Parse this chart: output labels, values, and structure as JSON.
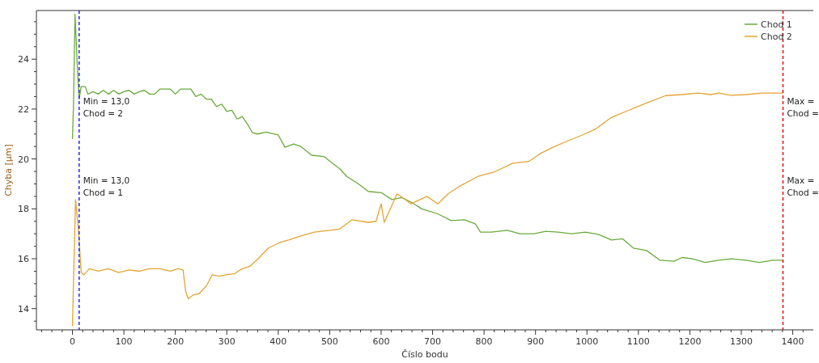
{
  "chart_data": {
    "type": "line",
    "xlabel": "Číslo bodu",
    "ylabel": "Chyba [µm]",
    "xlim": [
      -70,
      1440
    ],
    "ylim": [
      13.15,
      25.95
    ],
    "xticks": [
      {
        "value": -60,
        "label": null
      },
      {
        "value": -40,
        "label": null
      },
      {
        "value": -20,
        "label": null
      },
      0,
      {
        "value": 20,
        "label": null
      },
      {
        "value": 40,
        "label": null
      },
      {
        "value": 60,
        "label": null
      },
      {
        "value": 80,
        "label": null
      },
      100,
      {
        "value": 120,
        "label": null
      },
      {
        "value": 140,
        "label": null
      },
      {
        "value": 160,
        "label": null
      },
      {
        "value": 180,
        "label": null
      },
      200,
      {
        "value": 220,
        "label": null
      },
      {
        "value": 240,
        "label": null
      },
      {
        "value": 260,
        "label": null
      },
      {
        "value": 280,
        "label": null
      },
      300,
      {
        "value": 320,
        "label": null
      },
      {
        "value": 340,
        "label": null
      },
      {
        "value": 360,
        "label": null
      },
      {
        "value": 380,
        "label": null
      },
      400,
      {
        "value": 420,
        "label": null
      },
      {
        "value": 440,
        "label": null
      },
      {
        "value": 460,
        "label": null
      },
      {
        "value": 480,
        "label": null
      },
      500,
      {
        "value": 520,
        "label": null
      },
      {
        "value": 540,
        "label": null
      },
      {
        "value": 560,
        "label": null
      },
      {
        "value": 580,
        "label": null
      },
      600,
      {
        "value": 620,
        "label": null
      },
      {
        "value": 640,
        "label": null
      },
      {
        "value": 660,
        "label": null
      },
      {
        "value": 680,
        "label": null
      },
      700,
      {
        "value": 720,
        "label": null
      },
      {
        "value": 740,
        "label": null
      },
      {
        "value": 760,
        "label": null
      },
      {
        "value": 780,
        "label": null
      },
      800,
      {
        "value": 820,
        "label": null
      },
      {
        "value": 840,
        "label": null
      },
      {
        "value": 860,
        "label": null
      },
      {
        "value": 880,
        "label": null
      },
      900,
      {
        "value": 920,
        "label": null
      },
      {
        "value": 940,
        "label": null
      },
      {
        "value": 960,
        "label": null
      },
      {
        "value": 980,
        "label": null
      },
      1000,
      {
        "value": 1020,
        "label": null
      },
      {
        "value": 1040,
        "label": null
      },
      {
        "value": 1060,
        "label": null
      },
      {
        "value": 1080,
        "label": null
      },
      1100,
      {
        "value": 1120,
        "label": null
      },
      {
        "value": 1140,
        "label": null
      },
      {
        "value": 1160,
        "label": null
      },
      {
        "value": 1180,
        "label": null
      },
      1200,
      {
        "value": 1220,
        "label": null
      },
      {
        "value": 1240,
        "label": null
      },
      {
        "value": 1260,
        "label": null
      },
      {
        "value": 1280,
        "label": null
      },
      1300,
      {
        "value": 1320,
        "label": null
      },
      {
        "value": 1340,
        "label": null
      },
      {
        "value": 1360,
        "label": null
      },
      {
        "value": 1380,
        "label": null
      },
      1400,
      {
        "value": 1420,
        "label": null
      }
    ],
    "yticks": [
      {
        "value": 13.5,
        "label": null
      },
      14,
      {
        "value": 14.5,
        "label": null
      },
      {
        "value": 15,
        "label": null
      },
      {
        "value": 15.5,
        "label": null
      },
      16,
      {
        "value": 16.5,
        "label": null
      },
      {
        "value": 17,
        "label": null
      },
      {
        "value": 17.5,
        "label": null
      },
      18,
      {
        "value": 18.5,
        "label": null
      },
      {
        "value": 19,
        "label": null
      },
      {
        "value": 19.5,
        "label": null
      },
      20,
      {
        "value": 20.5,
        "label": null
      },
      {
        "value": 21,
        "label": null
      },
      {
        "value": 21.5,
        "label": null
      },
      22,
      {
        "value": 22.5,
        "label": null
      },
      {
        "value": 23,
        "label": null
      },
      {
        "value": 23.5,
        "label": null
      },
      24,
      {
        "value": 24.5,
        "label": null
      },
      {
        "value": 25,
        "label": null
      },
      {
        "value": 25.5,
        "label": null
      }
    ],
    "grid": false,
    "legend": "top right",
    "marker": "none",
    "line_style": "solid",
    "series": [
      {
        "name": "Chod 1",
        "color": "#6aab3c",
        "x": [
          0,
          2,
          5,
          10,
          13,
          17,
          25,
          30,
          40,
          50,
          60,
          70,
          80,
          90,
          100,
          110,
          120,
          130,
          140,
          150,
          160,
          170,
          190,
          200,
          210,
          230,
          240,
          250,
          260,
          270,
          280,
          290,
          300,
          310,
          320,
          330,
          340,
          350,
          360,
          376,
          400,
          413,
          430,
          444,
          465,
          489,
          501,
          520,
          533,
          556,
          575,
          600,
          621,
          640,
          658,
          679,
          710,
          736,
          762,
          783,
          793,
          814,
          845,
          870,
          897,
          920,
          944,
          970,
          997,
          1022,
          1048,
          1069,
          1090,
          1116,
          1142,
          1169,
          1185,
          1205,
          1230,
          1256,
          1280,
          1309,
          1335,
          1361,
          1381
        ],
        "values": [
          20.8,
          22.1,
          25.8,
          23.5,
          22.4,
          22.9,
          22.9,
          22.6,
          22.7,
          22.6,
          22.75,
          22.6,
          22.75,
          22.6,
          22.7,
          22.75,
          22.6,
          22.7,
          22.75,
          22.6,
          22.6,
          22.8,
          22.8,
          22.6,
          22.8,
          22.8,
          22.5,
          22.6,
          22.4,
          22.4,
          22.1,
          22.2,
          21.9,
          21.95,
          21.6,
          21.7,
          21.4,
          21.05,
          21.0,
          21.08,
          20.96,
          20.47,
          20.6,
          20.5,
          20.15,
          20.1,
          19.9,
          19.6,
          19.3,
          19.0,
          18.7,
          18.65,
          18.37,
          18.45,
          18.27,
          18.0,
          17.8,
          17.53,
          17.56,
          17.4,
          17.07,
          17.07,
          17.14,
          17.0,
          17.0,
          17.1,
          17.07,
          17.0,
          17.07,
          16.98,
          16.75,
          16.8,
          16.43,
          16.33,
          15.94,
          15.9,
          16.05,
          16.0,
          15.85,
          15.94,
          16.0,
          15.94,
          15.85,
          15.94,
          15.94
        ]
      },
      {
        "name": "Chod 2",
        "color": "#e3a533",
        "x": [
          0,
          6,
          12,
          17,
          22,
          33,
          50,
          70,
          90,
          110,
          130,
          150,
          170,
          190,
          205,
          215,
          220,
          225,
          235,
          246,
          260,
          272,
          285,
          298,
          315,
          330,
          345,
          361,
          381,
          403,
          420,
          439,
          470,
          501,
          520,
          543,
          575,
          590,
          600,
          606,
          631,
          645,
          658,
          689,
          710,
          730,
          752,
          788,
          819,
          856,
          887,
          908,
          934,
          960,
          991,
          1017,
          1048,
          1075,
          1111,
          1153,
          1184,
          1216,
          1240,
          1256,
          1280,
          1309,
          1340,
          1381
        ],
        "values": [
          13.3,
          18.37,
          17.07,
          15.45,
          15.35,
          15.6,
          15.5,
          15.6,
          15.45,
          15.55,
          15.5,
          15.6,
          15.6,
          15.5,
          15.6,
          15.55,
          14.7,
          14.4,
          14.55,
          14.6,
          14.9,
          15.36,
          15.3,
          15.36,
          15.4,
          15.6,
          15.7,
          16.0,
          16.43,
          16.65,
          16.75,
          16.88,
          17.07,
          17.14,
          17.2,
          17.56,
          17.46,
          17.5,
          18.2,
          17.46,
          18.6,
          18.4,
          18.2,
          18.5,
          18.2,
          18.6,
          18.9,
          19.3,
          19.47,
          19.83,
          19.9,
          20.2,
          20.47,
          20.7,
          20.96,
          21.2,
          21.67,
          21.9,
          22.2,
          22.54,
          22.58,
          22.64,
          22.58,
          22.64,
          22.55,
          22.58,
          22.64,
          22.64
        ]
      }
    ],
    "ref_lines": [
      {
        "axis": "x",
        "value": 13,
        "color": "#2a2ae0",
        "line_style": "dashed",
        "label": "Min = 13,0\nChod = 2"
      },
      {
        "axis": "x",
        "value": 1381,
        "color": "#e01010",
        "line_style": "dashed",
        "label": "Max =\nChod ="
      }
    ],
    "annotations": [
      {
        "text": "Min = 13,0\nChod = 1",
        "x": 13,
        "y": 19.0
      },
      {
        "text": "Max =\nChod =",
        "x": 1381,
        "y": 19.0
      }
    ]
  }
}
